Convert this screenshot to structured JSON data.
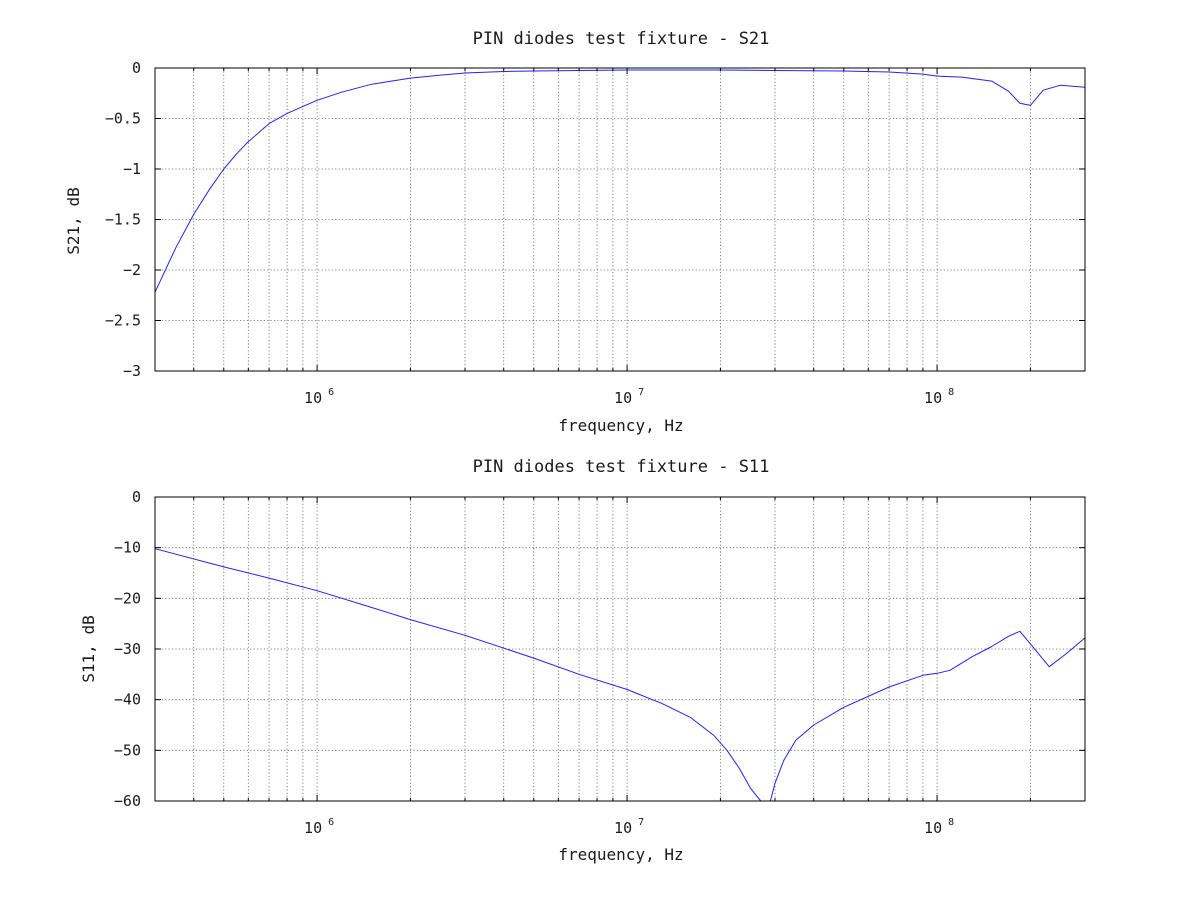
{
  "chart_data": [
    {
      "type": "line",
      "title": "PIN diodes test fixture - S21",
      "xlabel": "frequency, Hz",
      "ylabel": "S21, dB",
      "xscale": "log",
      "xlim": [
        300000,
        300000000
      ],
      "ylim": [
        -3,
        0
      ],
      "yticks": [
        0,
        -0.5,
        -1,
        -1.5,
        -2,
        -2.5,
        -3
      ],
      "ytick_labels": [
        "0",
        "−0.5",
        "−1",
        "−1.5",
        "−2",
        "−2.5",
        "−3"
      ],
      "xticks": [
        1000000,
        10000000,
        100000000
      ],
      "xtick_labels": [
        {
          "base": "10",
          "exp": "6"
        },
        {
          "base": "10",
          "exp": "7"
        },
        {
          "base": "10",
          "exp": "8"
        }
      ],
      "grid": true,
      "color": "#2020ff",
      "series": [
        {
          "x": [
            300000,
            350000,
            400000,
            450000,
            500000,
            550000,
            600000,
            700000,
            800000,
            900000,
            1000000,
            1200000,
            1500000,
            2000000,
            2500000,
            3000000,
            4000000,
            5000000,
            7000000,
            10000000,
            20000000,
            30000000,
            50000000,
            70000000,
            90000000,
            100000000,
            120000000,
            150000000,
            170000000,
            185000000,
            200000000,
            220000000,
            250000000,
            300000000
          ],
          "y": [
            -2.22,
            -1.78,
            -1.45,
            -1.2,
            -1.0,
            -0.85,
            -0.73,
            -0.55,
            -0.45,
            -0.38,
            -0.32,
            -0.24,
            -0.16,
            -0.1,
            -0.07,
            -0.05,
            -0.035,
            -0.03,
            -0.025,
            -0.02,
            -0.02,
            -0.025,
            -0.03,
            -0.04,
            -0.06,
            -0.08,
            -0.09,
            -0.13,
            -0.23,
            -0.35,
            -0.37,
            -0.22,
            -0.17,
            -0.19
          ]
        }
      ]
    },
    {
      "type": "line",
      "title": "PIN diodes test fixture - S11",
      "xlabel": "frequency, Hz",
      "ylabel": "S11, dB",
      "xscale": "log",
      "xlim": [
        300000,
        300000000
      ],
      "ylim": [
        -60,
        0
      ],
      "yticks": [
        0,
        -10,
        -20,
        -30,
        -40,
        -50,
        -60
      ],
      "ytick_labels": [
        "0",
        "−10",
        "−20",
        "−30",
        "−40",
        "−50",
        "−60"
      ],
      "xticks": [
        1000000,
        10000000,
        100000000
      ],
      "xtick_labels": [
        {
          "base": "10",
          "exp": "6"
        },
        {
          "base": "10",
          "exp": "7"
        },
        {
          "base": "10",
          "exp": "8"
        }
      ],
      "grid": true,
      "color": "#2020ff",
      "series": [
        {
          "x": [
            300000,
            500000,
            700000,
            1000000,
            1500000,
            2000000,
            3000000,
            5000000,
            7000000,
            10000000,
            13000000,
            16000000,
            19000000,
            21000000,
            23000000,
            25000000,
            27000000,
            28000000,
            29000000,
            30000000,
            32000000,
            35000000,
            40000000,
            50000000,
            70000000,
            90000000,
            100000000,
            110000000,
            130000000,
            150000000,
            170000000,
            185000000,
            200000000,
            230000000,
            260000000,
            300000000
          ],
          "y": [
            -10.2,
            -13.8,
            -16.0,
            -18.5,
            -21.8,
            -24.2,
            -27.3,
            -31.8,
            -35.0,
            -38.0,
            -40.8,
            -43.5,
            -47.0,
            -50.0,
            -53.5,
            -57.5,
            -60.0,
            -60.0,
            -60.0,
            -56.5,
            -52.0,
            -48.0,
            -45.0,
            -41.5,
            -37.5,
            -35.2,
            -34.8,
            -34.2,
            -31.5,
            -29.5,
            -27.5,
            -26.5,
            -29.0,
            -33.5,
            -31.0,
            -27.8
          ]
        }
      ]
    }
  ]
}
